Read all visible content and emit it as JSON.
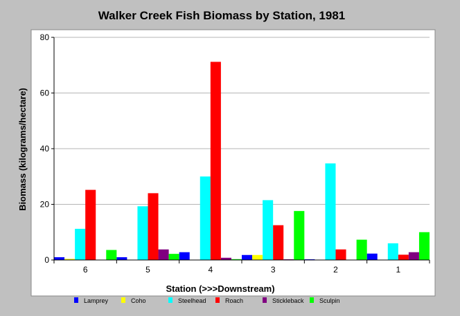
{
  "chart_data": {
    "type": "bar",
    "title": "Walker Creek Fish Biomass by Station, 1981",
    "xlabel": "Station (>>>Downstream)",
    "ylabel": "Biomass (kilograms/hectare)",
    "ylim": [
      0,
      80
    ],
    "yticks": [
      0,
      20,
      40,
      60,
      80
    ],
    "grid": true,
    "legend_position": "bottom",
    "categories": [
      "6",
      "5",
      "4",
      "3",
      "2",
      "1"
    ],
    "series": [
      {
        "name": "Lamprey",
        "color": "#0000ff",
        "values": [
          1.0,
          1.0,
          2.8,
          1.8,
          0.2,
          2.3
        ]
      },
      {
        "name": "Coho",
        "color": "#ffff00",
        "values": [
          0.4,
          0.0,
          0.0,
          1.8,
          0.0,
          0.0
        ]
      },
      {
        "name": "Steelhead",
        "color": "#00ffff",
        "values": [
          11.2,
          19.3,
          30.0,
          21.5,
          34.7,
          6.0
        ]
      },
      {
        "name": "Roach",
        "color": "#ff0000",
        "values": [
          25.2,
          24.0,
          71.2,
          12.5,
          3.8,
          1.9
        ]
      },
      {
        "name": "Stickleback",
        "color": "#800080",
        "values": [
          0.0,
          3.8,
          0.8,
          0.2,
          0.0,
          2.8
        ]
      },
      {
        "name": "Sculpin",
        "color": "#00ff00",
        "values": [
          3.6,
          2.2,
          0.3,
          17.6,
          7.3,
          10.0
        ]
      }
    ]
  }
}
